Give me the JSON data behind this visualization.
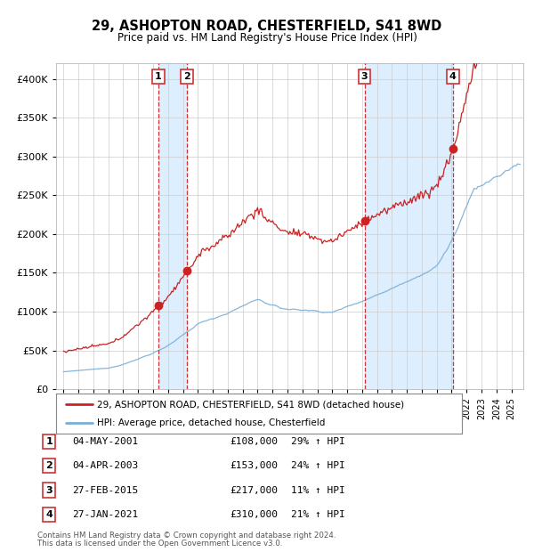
{
  "title": "29, ASHOPTON ROAD, CHESTERFIELD, S41 8WD",
  "subtitle": "Price paid vs. HM Land Registry's House Price Index (HPI)",
  "legend_line1": "29, ASHOPTON ROAD, CHESTERFIELD, S41 8WD (detached house)",
  "legend_line2": "HPI: Average price, detached house, Chesterfield",
  "footer1": "Contains HM Land Registry data © Crown copyright and database right 2024.",
  "footer2": "This data is licensed under the Open Government Licence v3.0.",
  "sales": [
    {
      "num": 1,
      "date": "04-MAY-2001",
      "year": 2001.35,
      "price": 108000,
      "hpi_pct": "29%"
    },
    {
      "num": 2,
      "date": "04-APR-2003",
      "year": 2003.25,
      "price": 153000,
      "hpi_pct": "24%"
    },
    {
      "num": 3,
      "date": "27-FEB-2015",
      "year": 2015.16,
      "price": 217000,
      "hpi_pct": "11%"
    },
    {
      "num": 4,
      "date": "27-JAN-2021",
      "year": 2021.07,
      "price": 310000,
      "hpi_pct": "21%"
    }
  ],
  "hpi_color": "#7aaed4",
  "price_color": "#cc2222",
  "dot_color": "#cc2222",
  "vline_color": "#cc3333",
  "shade_color": "#ddeeff",
  "grid_color": "#cccccc",
  "background_color": "#ffffff",
  "ylim": [
    0,
    420000
  ],
  "xlim_start": 1994.5,
  "xlim_end": 2025.8
}
